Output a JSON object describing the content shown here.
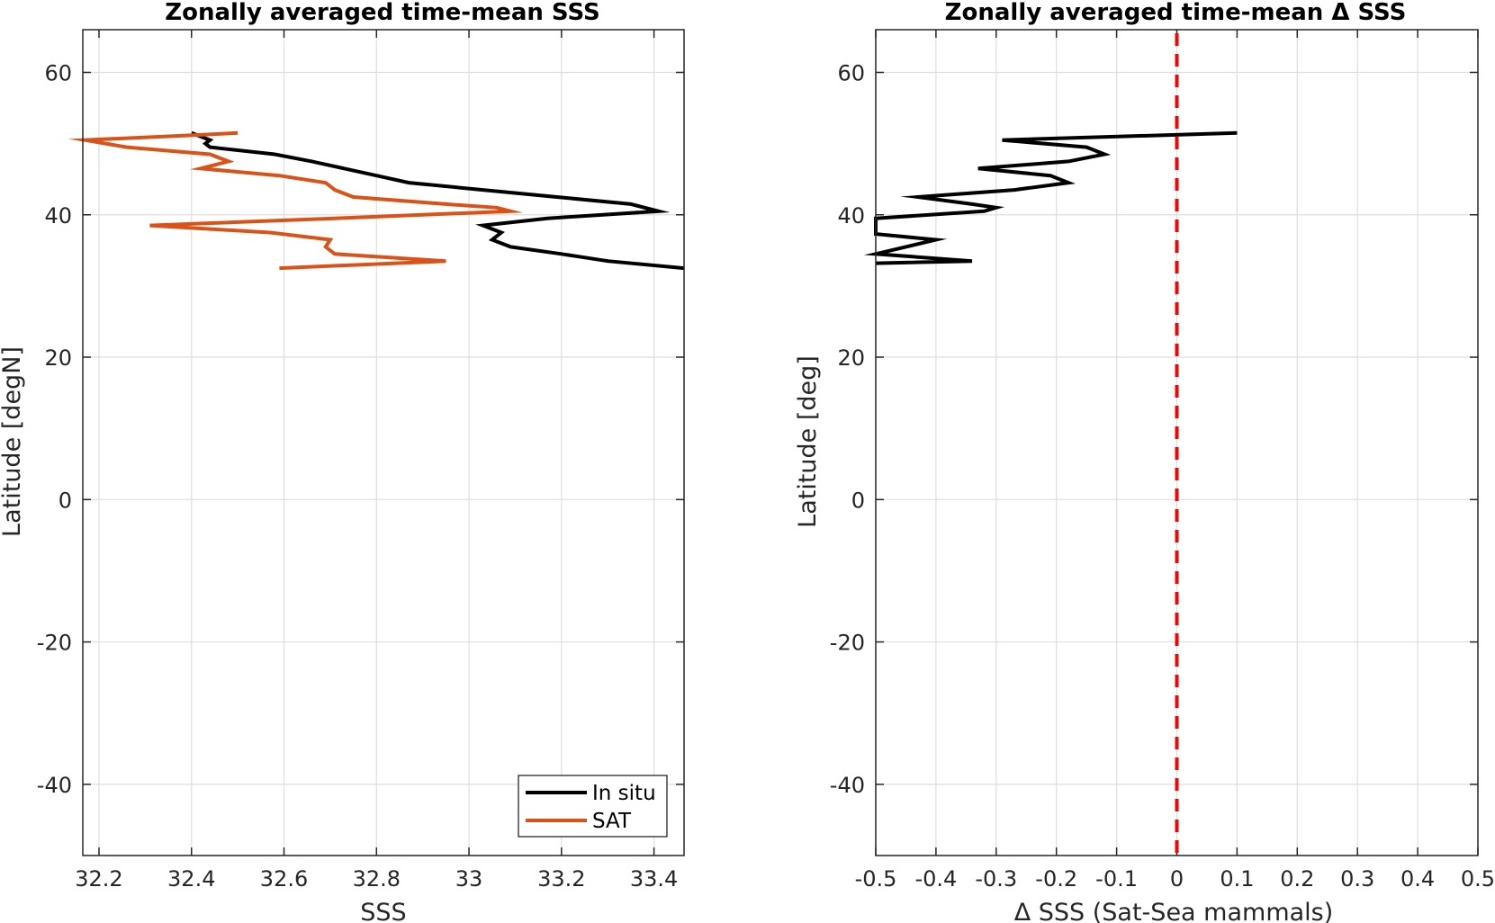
{
  "chart_data": [
    {
      "type": "line",
      "title": "Zonally averaged time-mean SSS",
      "xlabel": "SSS",
      "ylabel": "Latitude [degN]",
      "xlim": [
        32.165,
        33.465
      ],
      "ylim": [
        -50,
        66
      ],
      "xticks": [
        "32.2",
        "32.4",
        "32.6",
        "32.8",
        "33",
        "33.2",
        "33.4"
      ],
      "xtick_values": [
        32.2,
        32.4,
        32.6,
        32.8,
        33.0,
        33.2,
        33.4
      ],
      "yticks": [
        "-40",
        "-20",
        "0",
        "20",
        "40",
        "60"
      ],
      "ytick_values": [
        -40,
        -20,
        0,
        20,
        40,
        60
      ],
      "grid": true,
      "legend_position": "bottom-right",
      "series": [
        {
          "name": "In situ",
          "color": "#000000",
          "points": [
            [
              32.4,
              51.5
            ],
            [
              32.44,
              50.5
            ],
            [
              32.43,
              50
            ],
            [
              32.44,
              49.5
            ],
            [
              32.58,
              48.5
            ],
            [
              32.66,
              47.5
            ],
            [
              32.73,
              46.5
            ],
            [
              32.8,
              45.5
            ],
            [
              32.87,
              44.5
            ],
            [
              33.03,
              43.5
            ],
            [
              33.19,
              42.5
            ],
            [
              33.35,
              41.5
            ],
            [
              33.41,
              40.5
            ],
            [
              33.17,
              39.5
            ],
            [
              33.03,
              38.5
            ],
            [
              33.07,
              37.5
            ],
            [
              33.05,
              36.5
            ],
            [
              33.09,
              35.5
            ],
            [
              33.2,
              34.5
            ],
            [
              33.3,
              33.5
            ],
            [
              33.465,
              32.5
            ]
          ]
        },
        {
          "name": "SAT",
          "color": "#d95319",
          "points": [
            [
              32.5,
              51.5
            ],
            [
              32.41,
              51.2
            ],
            [
              32.17,
              50.5
            ],
            [
              32.26,
              49.5
            ],
            [
              32.44,
              48.5
            ],
            [
              32.48,
              47.5
            ],
            [
              32.42,
              46.5
            ],
            [
              32.59,
              45.5
            ],
            [
              32.69,
              44.5
            ],
            [
              32.71,
              43.5
            ],
            [
              32.75,
              42.5
            ],
            [
              32.95,
              41.5
            ],
            [
              33.06,
              41.0
            ],
            [
              33.09,
              40.5
            ],
            [
              32.71,
              39.5
            ],
            [
              32.31,
              38.5
            ],
            [
              32.57,
              37.5
            ],
            [
              32.7,
              36.5
            ],
            [
              32.69,
              35.5
            ],
            [
              32.71,
              34.5
            ],
            [
              32.95,
              33.5
            ],
            [
              32.59,
              32.5
            ]
          ]
        }
      ]
    },
    {
      "type": "line",
      "title": "Zonally averaged time-mean Δ SSS",
      "xlabel": "Δ SSS (Sat-Sea mammals)",
      "ylabel": "Latitude [deg]",
      "xlim": [
        -0.5,
        0.5
      ],
      "ylim": [
        -50,
        66
      ],
      "xticks": [
        "-0.5",
        "-0.4",
        "-0.3",
        "-0.2",
        "-0.1",
        "0",
        "0.1",
        "0.2",
        "0.3",
        "0.4",
        "0.5"
      ],
      "xtick_values": [
        -0.5,
        -0.4,
        -0.3,
        -0.2,
        -0.1,
        0,
        0.1,
        0.2,
        0.3,
        0.4,
        0.5
      ],
      "yticks": [
        "-40",
        "-20",
        "0",
        "20",
        "40",
        "60"
      ],
      "ytick_values": [
        -40,
        -20,
        0,
        20,
        40,
        60
      ],
      "grid": true,
      "reference_line": {
        "x": 0,
        "color": "#ff0000",
        "style": "dashed"
      },
      "series": [
        {
          "name": "",
          "color": "#000000",
          "points": [
            [
              0.1,
              51.5
            ],
            [
              -0.29,
              50.5
            ],
            [
              -0.15,
              49.5
            ],
            [
              -0.12,
              48.5
            ],
            [
              -0.18,
              47.5
            ],
            [
              -0.33,
              46.5
            ],
            [
              -0.21,
              45.5
            ],
            [
              -0.18,
              44.5
            ],
            [
              -0.27,
              43.5
            ],
            [
              -0.43,
              42.5
            ],
            [
              -0.34,
              41.5
            ],
            [
              -0.3,
              41.0
            ],
            [
              -0.32,
              40.5
            ],
            [
              -0.5,
              39.5
            ],
            [
              -0.5,
              37.3
            ],
            [
              -0.4,
              36.5
            ],
            [
              -0.5,
              34.5
            ],
            [
              -0.34,
              33.5
            ],
            [
              -0.5,
              33.2
            ]
          ]
        }
      ]
    }
  ]
}
